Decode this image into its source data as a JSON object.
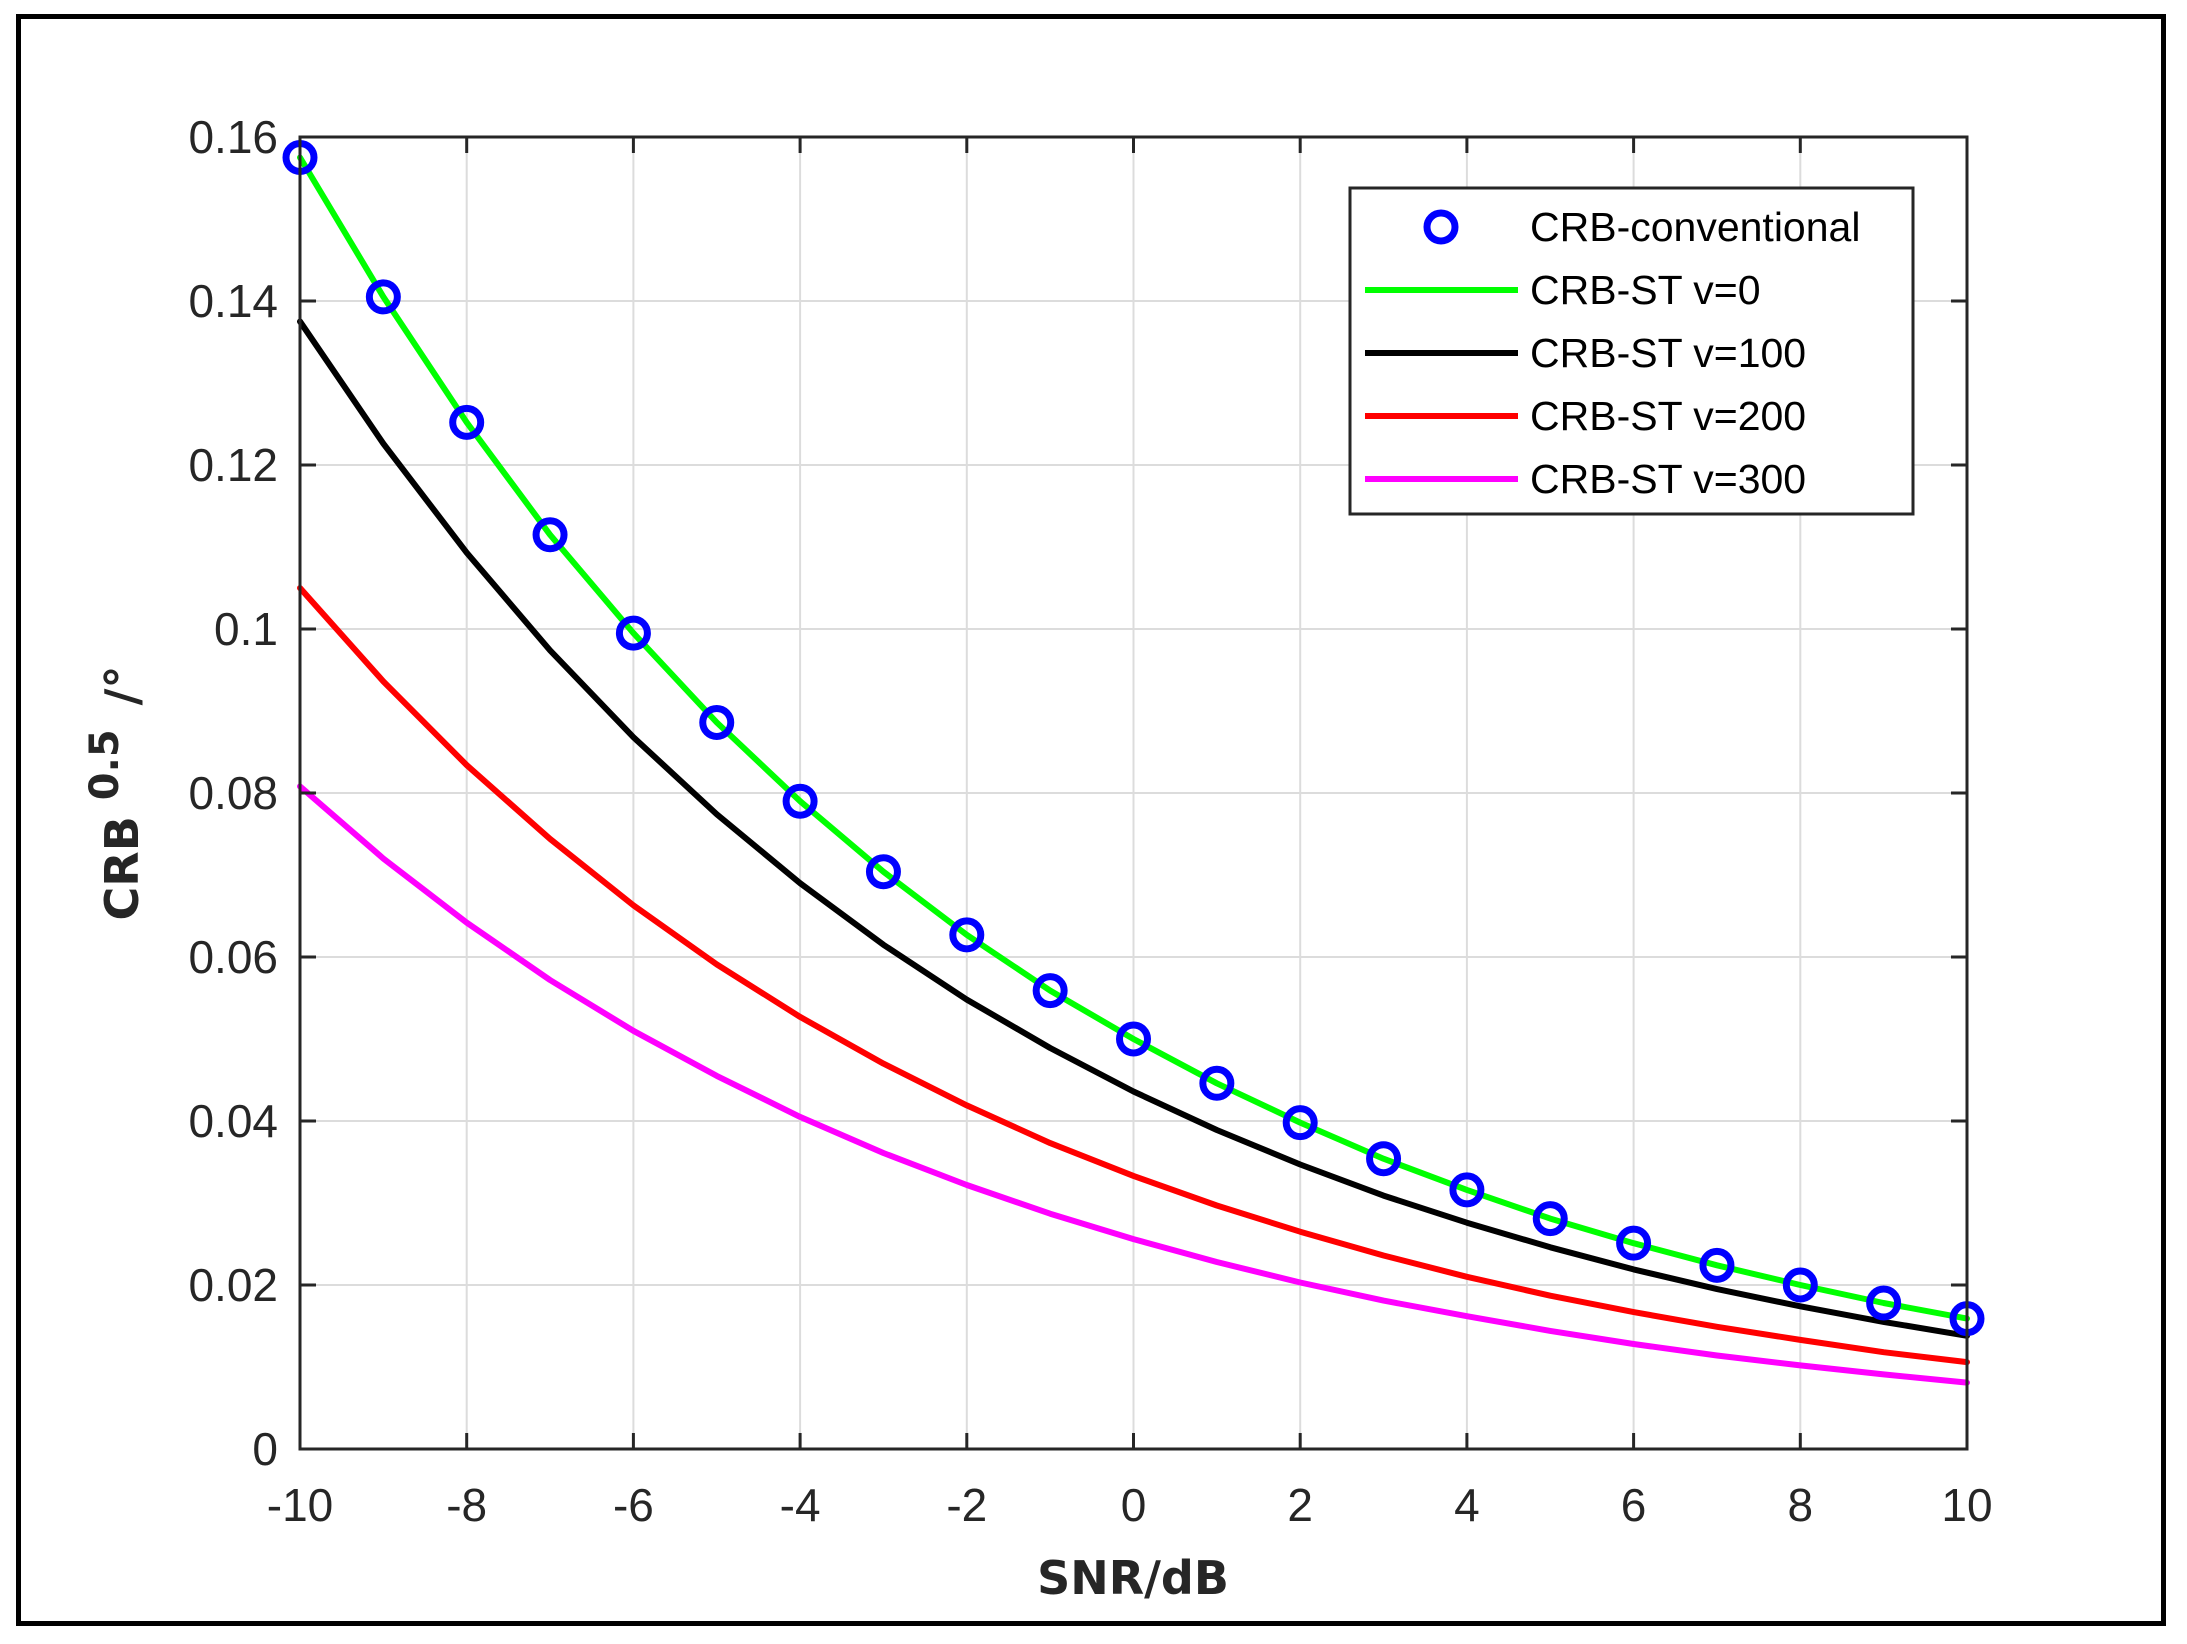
{
  "chart_data": {
    "type": "line",
    "title": "",
    "xlabel": "SNR/dB",
    "ylabel_main": "CRB",
    "ylabel_sup": "0.5",
    "ylabel_unit": "/°",
    "xlim": [
      -10,
      10
    ],
    "ylim": [
      0,
      0.16
    ],
    "grid": true,
    "legend_position": "top-right",
    "x_ticks": [
      "-10",
      "-8",
      "-6",
      "-4",
      "-2",
      "0",
      "2",
      "4",
      "6",
      "8",
      "10"
    ],
    "x_tick_values": [
      -10,
      -8,
      -6,
      -4,
      -2,
      0,
      2,
      4,
      6,
      8,
      10
    ],
    "y_ticks": [
      "0",
      "0.02",
      "0.04",
      "0.06",
      "0.08",
      "0.1",
      "0.12",
      "0.14",
      "0.16"
    ],
    "y_tick_values": [
      0,
      0.02,
      0.04,
      0.06,
      0.08,
      0.1,
      0.12,
      0.14,
      0.16
    ],
    "x": [
      -10,
      -9,
      -8,
      -7,
      -6,
      -5,
      -4,
      -3,
      -2,
      -1,
      0,
      1,
      2,
      3,
      4,
      5,
      6,
      7,
      8,
      9,
      10
    ],
    "series": [
      {
        "name": "CRB-conventional",
        "style": "markers",
        "color": "#0000ff",
        "values": [
          0.1575,
          0.1405,
          0.1252,
          0.1115,
          0.0995,
          0.0886,
          0.079,
          0.0704,
          0.0627,
          0.0559,
          0.05,
          0.0446,
          0.0398,
          0.0354,
          0.0316,
          0.0281,
          0.0251,
          0.0224,
          0.02,
          0.0178,
          0.0159
        ]
      },
      {
        "name": "CRB-ST v=0",
        "style": "line",
        "color": "#00ff00",
        "values": [
          0.1575,
          0.1405,
          0.1252,
          0.1115,
          0.0995,
          0.0886,
          0.079,
          0.0704,
          0.0627,
          0.0559,
          0.05,
          0.0446,
          0.0398,
          0.0354,
          0.0316,
          0.0281,
          0.0251,
          0.0224,
          0.02,
          0.0178,
          0.0159
        ]
      },
      {
        "name": "CRB-ST v=100",
        "style": "line",
        "color": "#000000",
        "values": [
          0.1375,
          0.1226,
          0.1093,
          0.0974,
          0.0868,
          0.0774,
          0.069,
          0.0615,
          0.0548,
          0.0489,
          0.0436,
          0.0389,
          0.0347,
          0.0309,
          0.0276,
          0.0246,
          0.0219,
          0.0195,
          0.0174,
          0.0155,
          0.0138
        ]
      },
      {
        "name": "CRB-ST v=200",
        "style": "line",
        "color": "#ff0000",
        "values": [
          0.105,
          0.0936,
          0.0834,
          0.0744,
          0.0663,
          0.0591,
          0.0527,
          0.047,
          0.0419,
          0.0373,
          0.0333,
          0.0297,
          0.0265,
          0.0236,
          0.021,
          0.0187,
          0.0167,
          0.0149,
          0.0133,
          0.0118,
          0.0106
        ]
      },
      {
        "name": "CRB-ST v=300",
        "style": "line",
        "color": "#ff00ff",
        "values": [
          0.0808,
          0.072,
          0.0642,
          0.0572,
          0.051,
          0.0455,
          0.0405,
          0.0361,
          0.0322,
          0.0287,
          0.0256,
          0.0228,
          0.0203,
          0.0181,
          0.0162,
          0.0144,
          0.0128,
          0.0114,
          0.0102,
          0.0091,
          0.0081
        ]
      }
    ]
  }
}
